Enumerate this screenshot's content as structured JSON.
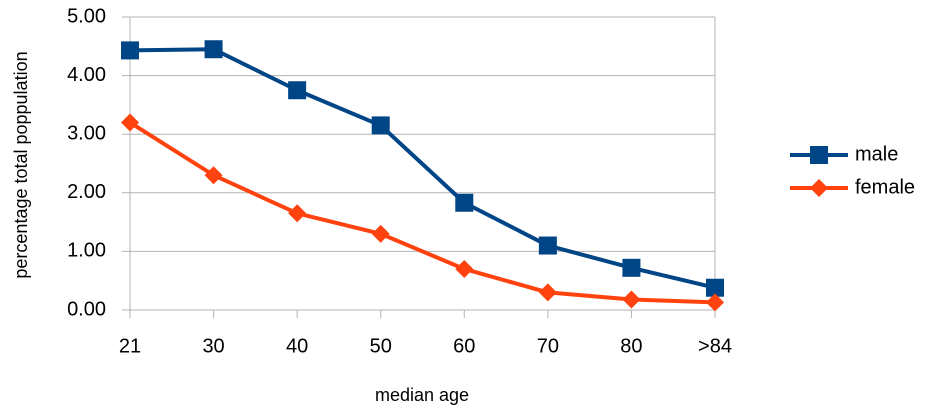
{
  "chart_data": {
    "type": "line",
    "x_label": "median age",
    "y_label": "percentage total poppulation",
    "categories": [
      "21",
      "30",
      "40",
      "50",
      "60",
      "70",
      "80",
      ">84"
    ],
    "series": [
      {
        "name": "male",
        "color": "#004586",
        "marker": "square",
        "values": [
          4.43,
          4.45,
          3.75,
          3.15,
          1.83,
          1.1,
          0.72,
          0.38
        ]
      },
      {
        "name": "female",
        "color": "#ff420e",
        "marker": "diamond",
        "values": [
          3.2,
          2.3,
          1.65,
          1.3,
          0.7,
          0.3,
          0.18,
          0.13
        ]
      }
    ],
    "ylim": [
      0,
      5
    ],
    "yticks": [
      {
        "value": 0,
        "label": "0.00"
      },
      {
        "value": 1,
        "label": "1.00"
      },
      {
        "value": 2,
        "label": "2.00"
      },
      {
        "value": 3,
        "label": "3.00"
      },
      {
        "value": 4,
        "label": "4.00"
      },
      {
        "value": 5,
        "label": "5.00"
      }
    ],
    "grid": true,
    "legend": "right"
  }
}
